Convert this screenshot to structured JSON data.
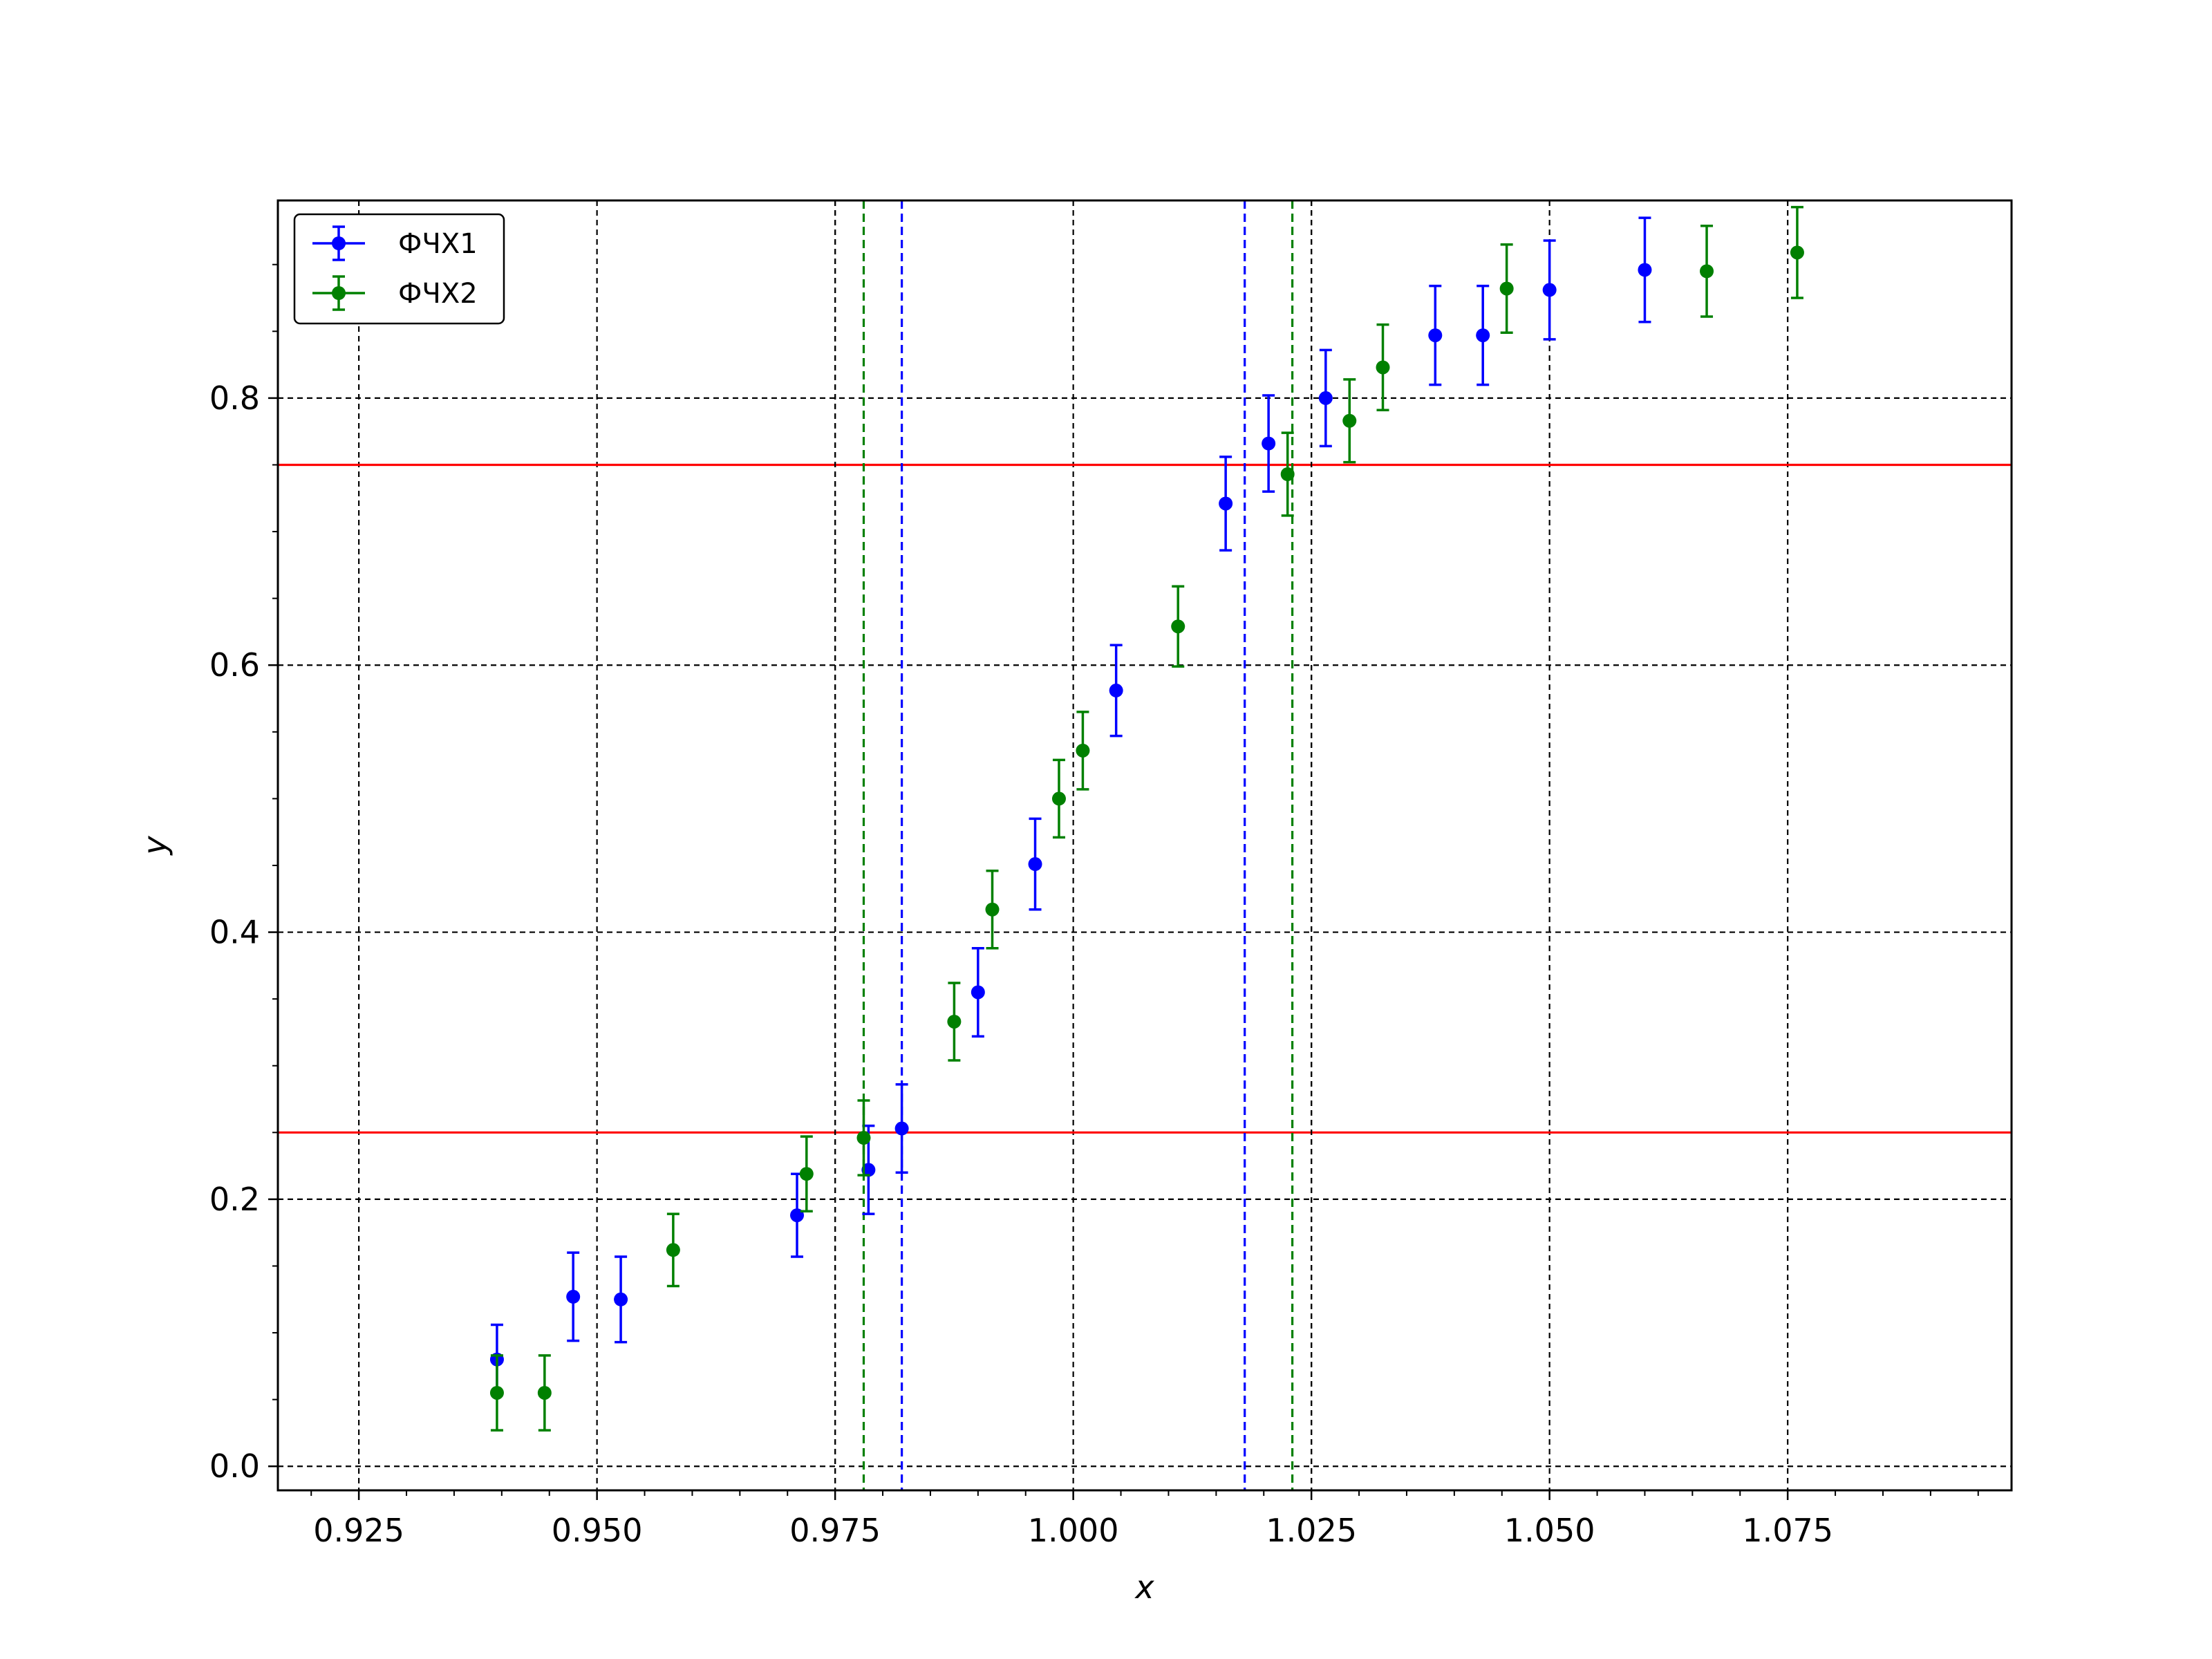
{
  "chart_data": {
    "type": "scatter",
    "title": "",
    "xlabel": "x",
    "ylabel": "y",
    "xlim": [
      0.9165,
      1.0985
    ],
    "ylim": [
      -0.018,
      0.948
    ],
    "xticks": [
      "0.925",
      "0.950",
      "0.975",
      "1.000",
      "1.025",
      "1.050",
      "1.075"
    ],
    "xtick_values": [
      0.925,
      0.95,
      0.975,
      1.0,
      1.025,
      1.05,
      1.075
    ],
    "yticks": [
      "0.0",
      "0.2",
      "0.4",
      "0.6",
      "0.8"
    ],
    "ytick_values": [
      0.0,
      0.2,
      0.4,
      0.6,
      0.8
    ],
    "grid": true,
    "legend_position": "top-left",
    "series": [
      {
        "name": "ФЧХ1",
        "color": "#0000ff",
        "x": [
          0.9395,
          0.9475,
          0.9525,
          0.971,
          0.9785,
          0.982,
          0.99,
          0.996,
          1.0045,
          1.016,
          1.0205,
          1.0265,
          1.038,
          1.043,
          1.05,
          1.06
        ],
        "y": [
          0.08,
          0.127,
          0.125,
          0.188,
          0.222,
          0.253,
          0.355,
          0.451,
          0.581,
          0.721,
          0.766,
          0.8,
          0.847,
          0.847,
          0.881,
          0.896
        ],
        "yerr": [
          0.026,
          0.033,
          0.032,
          0.031,
          0.033,
          0.033,
          0.033,
          0.034,
          0.034,
          0.035,
          0.036,
          0.036,
          0.037,
          0.037,
          0.037,
          0.039
        ]
      },
      {
        "name": "ФЧХ2",
        "color": "#008000",
        "x": [
          0.9395,
          0.9445,
          0.958,
          0.972,
          0.978,
          0.9875,
          0.9915,
          0.9985,
          1.001,
          1.011,
          1.0225,
          1.029,
          1.0325,
          1.0455,
          1.0665,
          1.076
        ],
        "y": [
          0.055,
          0.055,
          0.162,
          0.219,
          0.246,
          0.333,
          0.417,
          0.5,
          0.536,
          0.629,
          0.743,
          0.783,
          0.823,
          0.882,
          0.895,
          0.909
        ],
        "yerr": [
          0.028,
          0.028,
          0.027,
          0.028,
          0.028,
          0.029,
          0.029,
          0.029,
          0.029,
          0.03,
          0.031,
          0.031,
          0.032,
          0.033,
          0.034,
          0.034
        ]
      }
    ],
    "reference_lines": {
      "horizontal": [
        {
          "y": 0.25,
          "color": "#ff0000"
        },
        {
          "y": 0.75,
          "color": "#ff0000"
        }
      ],
      "vertical": [
        {
          "x": 0.975,
          "color": "#000000"
        },
        {
          "x": 1.025,
          "color": "#000000"
        },
        {
          "x": 0.978,
          "color": "#008000"
        },
        {
          "x": 0.982,
          "color": "#0000ff"
        },
        {
          "x": 1.018,
          "color": "#0000ff"
        },
        {
          "x": 1.023,
          "color": "#008000"
        }
      ]
    }
  }
}
